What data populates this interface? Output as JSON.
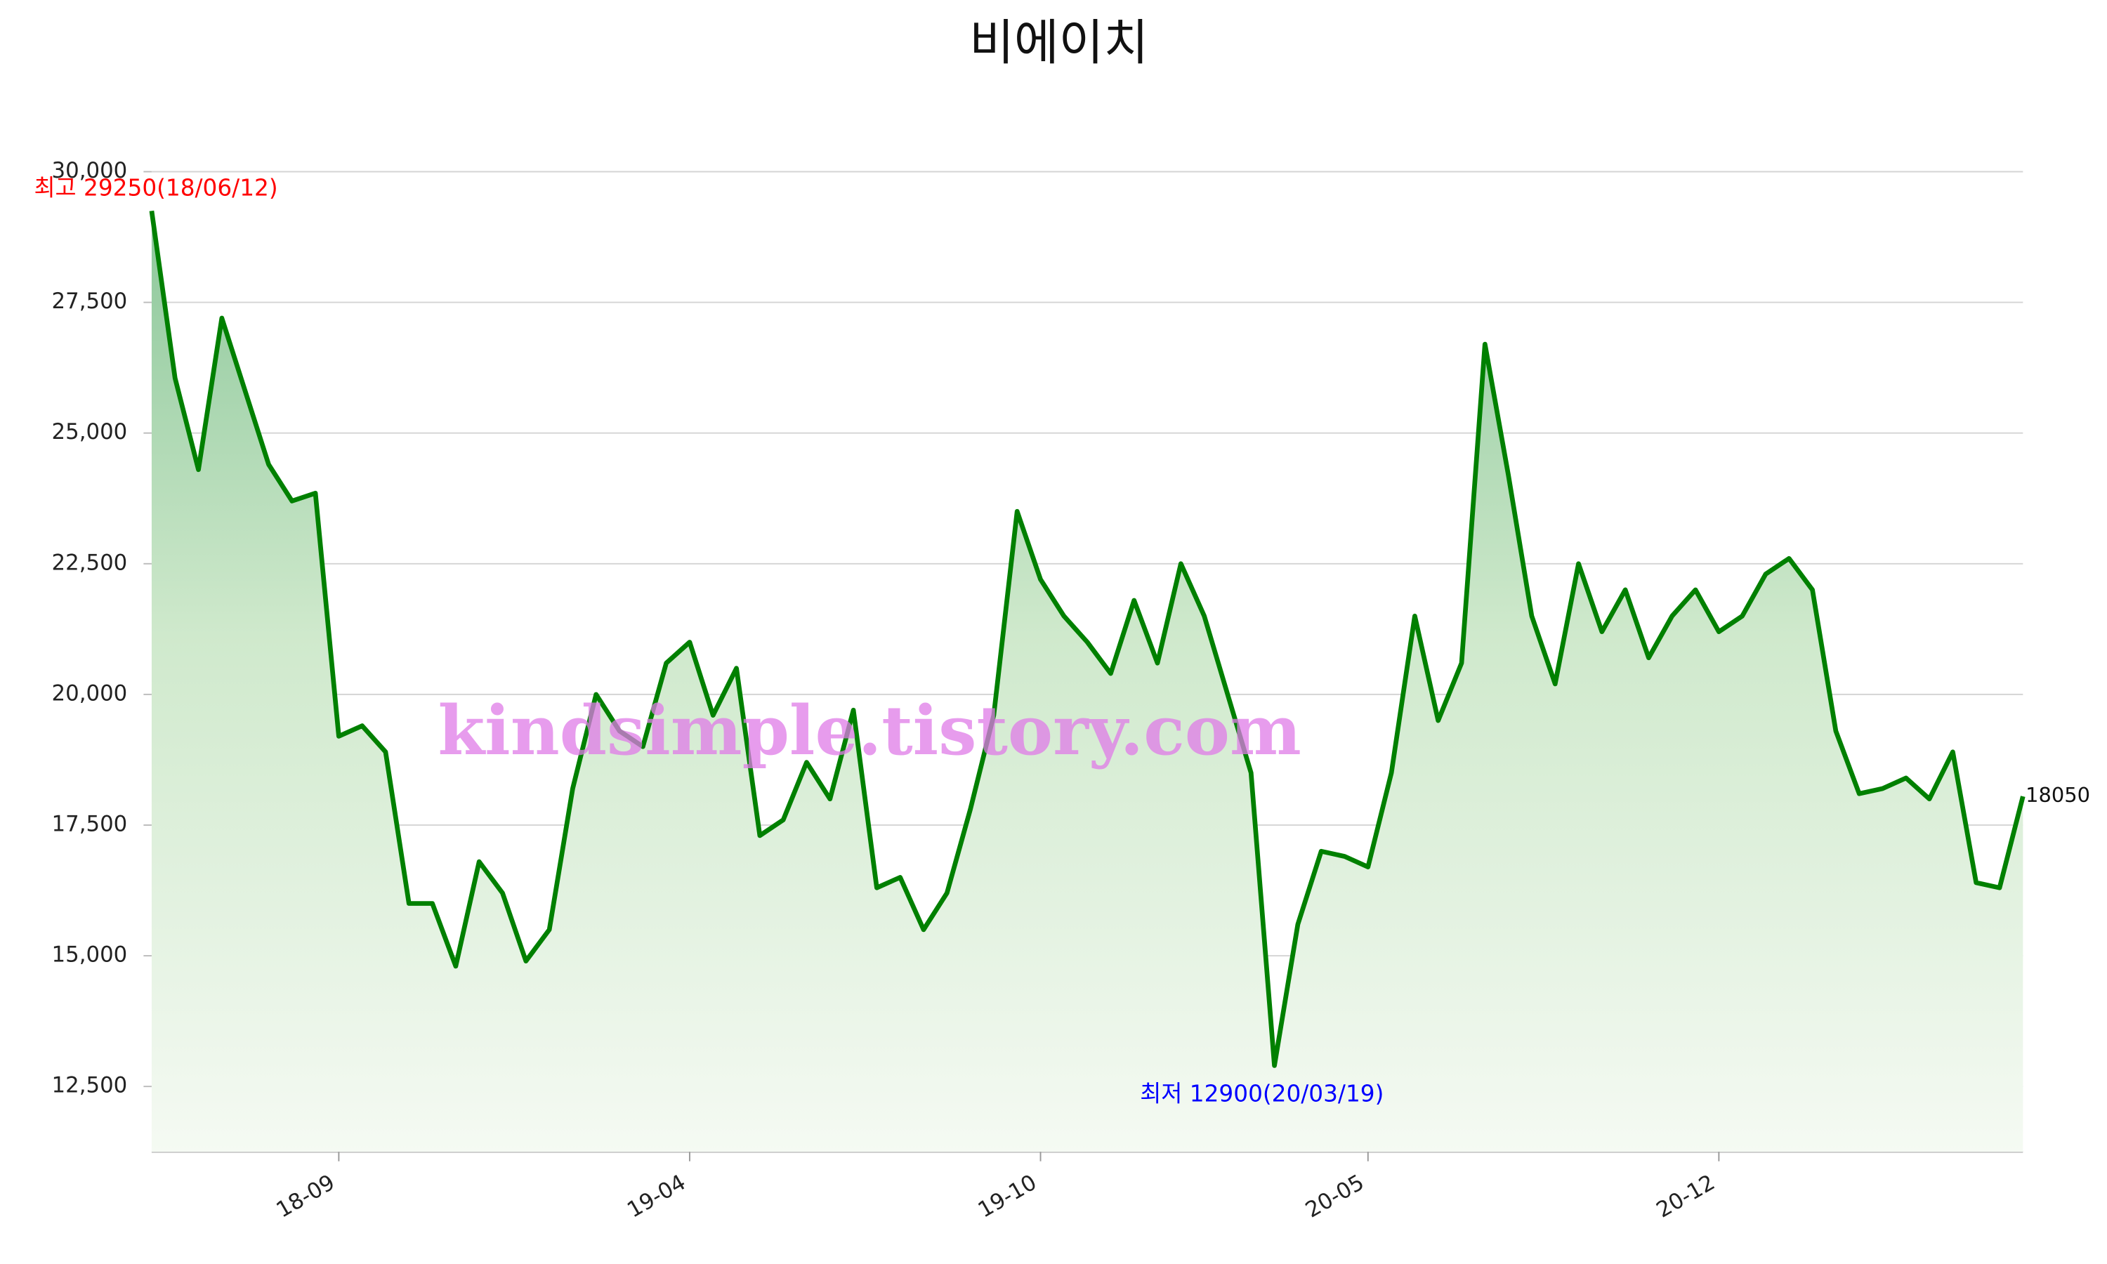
{
  "chart_data": {
    "type": "line",
    "title": "비에이치",
    "watermark": "kindsimple.tistory.com",
    "x": [
      "2018-06-12",
      "2018-06-22",
      "2018-07-03",
      "2018-07-13",
      "2018-07-24",
      "2018-08-03",
      "2018-08-14",
      "2018-08-24",
      "2018-09-03",
      "2018-09-17",
      "2018-10-01",
      "2018-10-15",
      "2018-10-29",
      "2018-11-12",
      "2018-11-26",
      "2018-12-10",
      "2018-12-24",
      "2019-01-07",
      "2019-01-21",
      "2019-02-04",
      "2019-02-18",
      "2019-03-04",
      "2019-03-18",
      "2019-04-01",
      "2019-04-12",
      "2019-04-24",
      "2019-05-07",
      "2019-05-20",
      "2019-06-03",
      "2019-06-14",
      "2019-06-26",
      "2019-07-08",
      "2019-07-19",
      "2019-07-31",
      "2019-08-12",
      "2019-08-23",
      "2019-09-04",
      "2019-09-18",
      "2019-10-01",
      "2019-10-17",
      "2019-11-04",
      "2019-11-21",
      "2019-12-06",
      "2019-12-23",
      "2020-01-09",
      "2020-01-28",
      "2020-02-13",
      "2020-03-02",
      "2020-03-19",
      "2020-03-31",
      "2020-04-13",
      "2020-04-22",
      "2020-05-04",
      "2020-05-18",
      "2020-06-01",
      "2020-06-15",
      "2020-06-29",
      "2020-07-13",
      "2020-07-27",
      "2020-08-10",
      "2020-08-24",
      "2020-09-07",
      "2020-09-21",
      "2020-10-05",
      "2020-10-19",
      "2020-11-02",
      "2020-11-16",
      "2020-12-01",
      "2020-12-15",
      "2020-12-29",
      "2021-01-12",
      "2021-01-26",
      "2021-02-09",
      "2021-02-23",
      "2021-03-09",
      "2021-03-23",
      "2021-04-06",
      "2021-04-20",
      "2021-05-04",
      "2021-05-18",
      "2021-06-01"
    ],
    "series": [
      {
        "name": "비에이치",
        "color": "#008000",
        "values": [
          29250,
          26050,
          24300,
          27200,
          25800,
          24400,
          23700,
          23850,
          19200,
          19400,
          18900,
          16000,
          16000,
          14800,
          16800,
          16200,
          14900,
          15500,
          18200,
          20000,
          19300,
          19000,
          20600,
          21000,
          19600,
          20500,
          17300,
          17600,
          18700,
          18000,
          19700,
          16300,
          16500,
          15500,
          16200,
          17800,
          19600,
          23500,
          22200,
          21500,
          21000,
          20400,
          21800,
          20600,
          22500,
          21500,
          20000,
          18500,
          12900,
          15600,
          17000,
          16900,
          16700,
          18500,
          21500,
          19500,
          20600,
          26700,
          24200,
          21500,
          20200,
          22500,
          21200,
          22000,
          20700,
          21500,
          22000,
          21200,
          21500,
          22300,
          22600,
          22000,
          19300,
          18100,
          18200,
          18400,
          18000,
          18900,
          16400,
          16300,
          18050
        ]
      }
    ],
    "ylim": [
      11250,
      30000
    ],
    "yticks": [
      {
        "value": 12500,
        "label": "12,500"
      },
      {
        "value": 15000,
        "label": "15,000"
      },
      {
        "value": 17500,
        "label": "17,500"
      },
      {
        "value": 20000,
        "label": "20,000"
      },
      {
        "value": 22500,
        "label": "22,500"
      },
      {
        "value": 25000,
        "label": "25,000"
      },
      {
        "value": 27500,
        "label": "27,500"
      },
      {
        "value": 30000,
        "label": "30,000"
      }
    ],
    "xticks": [
      {
        "value": "2018-09-03",
        "label": "18-09"
      },
      {
        "value": "2019-04-01",
        "label": "19-04"
      },
      {
        "value": "2019-10-01",
        "label": "19-10"
      },
      {
        "value": "2020-05-04",
        "label": "20-05"
      },
      {
        "value": "2020-12-01",
        "label": "20-12"
      }
    ],
    "grid": true,
    "annotations": [
      {
        "text": "최고 29250(18/06/12)",
        "color": "#ff0000"
      },
      {
        "text": "최저 12900(20/03/19)",
        "color": "#0000ff"
      }
    ]
  }
}
